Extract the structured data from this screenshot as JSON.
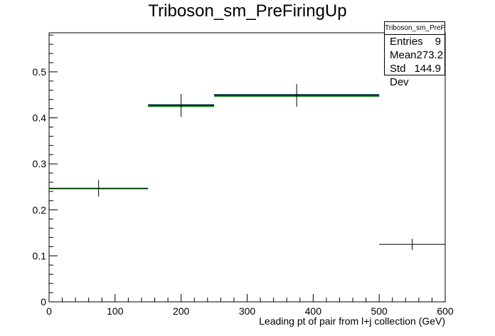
{
  "chart_data": {
    "type": "bar",
    "title": "Triboson_sm_PreFiringUp",
    "xlabel": "Leading pt of pair from l+j collection (GeV)",
    "ylabel": "",
    "xlim": [
      0,
      600
    ],
    "ylim": [
      0,
      0.585
    ],
    "x_ticks": [
      0,
      100,
      200,
      300,
      400,
      500,
      600
    ],
    "y_ticks": [
      0,
      0.1,
      0.2,
      0.3,
      0.4,
      0.5
    ],
    "grid": false,
    "bins": [
      {
        "low": 0,
        "high": 150,
        "center": 75,
        "value": 0.247,
        "err": 0.018
      },
      {
        "low": 150,
        "high": 250,
        "center": 200,
        "value": 0.427,
        "err": 0.025
      },
      {
        "low": 250,
        "high": 500,
        "center": 375,
        "value": 0.449,
        "err": 0.025
      },
      {
        "low": 500,
        "high": 600,
        "center": 550,
        "value": 0.125,
        "err": 0.012
      }
    ],
    "series": [
      {
        "color": "#000000",
        "values": [
          0.247,
          0.427,
          0.449,
          0.125
        ],
        "style": "points-with-errors"
      },
      {
        "color": "#00aa00",
        "values": [
          0.246,
          0.425,
          0.447,
          null
        ],
        "style": "hist"
      },
      {
        "color": "#0a2a8a",
        "values": [
          null,
          0.428,
          0.45,
          null
        ],
        "style": "hist"
      }
    ]
  },
  "stats_box": {
    "title": "Triboson_sm_PreFiringUp",
    "entries_label": "Entries",
    "entries_value": "9",
    "mean_label": "Mean",
    "mean_value": "273.2",
    "std_label": "Std Dev",
    "std_value": "144.9"
  }
}
